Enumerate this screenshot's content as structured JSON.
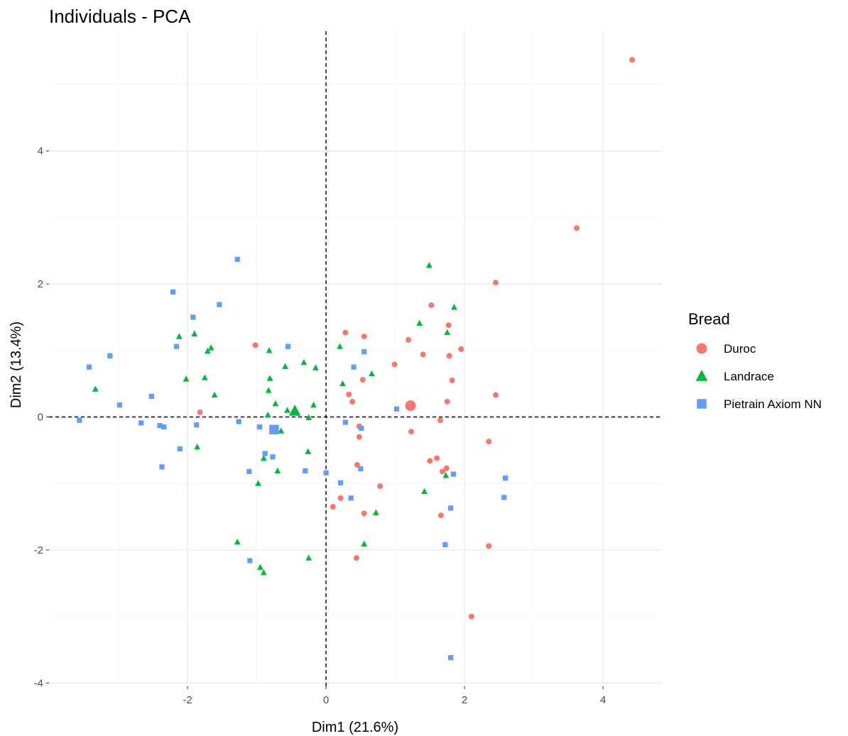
{
  "chart_data": {
    "type": "scatter",
    "title": "Individuals - PCA",
    "xlabel": "Dim1 (21.6%)",
    "ylabel": "Dim2 (13.4%)",
    "xlim": [
      -4.0,
      4.85
    ],
    "ylim": [
      -4.05,
      5.8
    ],
    "xticks": [
      -2,
      0,
      2,
      4
    ],
    "yticks": [
      -4,
      -2,
      0,
      2,
      4
    ],
    "xtick_labels": [
      "-2",
      "0",
      "2",
      "4"
    ],
    "ytick_labels": [
      "-4",
      "-2",
      "0",
      "2",
      "4"
    ],
    "grid": true,
    "reference_lines": {
      "x": 0,
      "y": 0
    },
    "legend": {
      "title": "Bread",
      "position": "right"
    },
    "series": [
      {
        "name": "Duroc",
        "color": "#F8766D",
        "marker": "circle",
        "centroid": [
          1.22,
          0.17
        ],
        "points": [
          [
            4.42,
            5.37
          ],
          [
            3.62,
            2.84
          ],
          [
            2.45,
            2.02
          ],
          [
            1.52,
            1.68
          ],
          [
            0.28,
            1.27
          ],
          [
            0.55,
            1.21
          ],
          [
            1.77,
            1.38
          ],
          [
            1.19,
            1.16
          ],
          [
            1.95,
            1.02
          ],
          [
            1.4,
            0.94
          ],
          [
            1.78,
            0.92
          ],
          [
            -1.02,
            1.08
          ],
          [
            0.99,
            0.79
          ],
          [
            1.82,
            0.55
          ],
          [
            0.53,
            0.56
          ],
          [
            0.33,
            0.34
          ],
          [
            0.38,
            0.23
          ],
          [
            2.45,
            0.33
          ],
          [
            1.75,
            0.23
          ],
          [
            -1.82,
            0.07
          ],
          [
            1.65,
            -0.05
          ],
          [
            1.23,
            -0.22
          ],
          [
            0.48,
            -0.14
          ],
          [
            0.48,
            -0.3
          ],
          [
            2.35,
            -0.37
          ],
          [
            1.6,
            -0.62
          ],
          [
            1.5,
            -0.66
          ],
          [
            1.74,
            -0.77
          ],
          [
            1.68,
            -0.82
          ],
          [
            0.45,
            -0.72
          ],
          [
            0.78,
            -1.04
          ],
          [
            0.21,
            -1.22
          ],
          [
            0.1,
            -1.35
          ],
          [
            0.55,
            -1.45
          ],
          [
            1.66,
            -1.48
          ],
          [
            2.35,
            -1.94
          ],
          [
            0.44,
            -2.12
          ],
          [
            2.1,
            -3.0
          ]
        ]
      },
      {
        "name": "Landrace",
        "color": "#00BA38",
        "marker": "triangle",
        "centroid": [
          -0.45,
          0.09
        ],
        "points": [
          [
            1.49,
            2.28
          ],
          [
            1.85,
            1.65
          ],
          [
            1.35,
            1.41
          ],
          [
            1.75,
            1.27
          ],
          [
            -2.12,
            1.21
          ],
          [
            -1.9,
            1.25
          ],
          [
            -1.66,
            1.04
          ],
          [
            -1.71,
            0.99
          ],
          [
            -0.82,
            1.0
          ],
          [
            0.2,
            1.06
          ],
          [
            -0.32,
            0.82
          ],
          [
            -0.59,
            0.76
          ],
          [
            -0.15,
            0.74
          ],
          [
            0.66,
            0.65
          ],
          [
            -2.02,
            0.57
          ],
          [
            -1.75,
            0.59
          ],
          [
            -0.81,
            0.58
          ],
          [
            0.24,
            0.5
          ],
          [
            -0.83,
            0.4
          ],
          [
            -3.33,
            0.42
          ],
          [
            -1.61,
            0.33
          ],
          [
            -0.73,
            0.2
          ],
          [
            -0.18,
            0.18
          ],
          [
            -0.84,
            0.03
          ],
          [
            -0.56,
            0.1
          ],
          [
            -0.25,
            -0.01
          ],
          [
            -0.65,
            -0.21
          ],
          [
            -1.86,
            -0.45
          ],
          [
            -0.26,
            -0.52
          ],
          [
            -0.9,
            -0.62
          ],
          [
            -0.7,
            -0.81
          ],
          [
            1.73,
            -0.88
          ],
          [
            -0.98,
            -1.0
          ],
          [
            1.42,
            -1.12
          ],
          [
            0.72,
            -1.44
          ],
          [
            -1.28,
            -1.88
          ],
          [
            0.55,
            -1.91
          ],
          [
            -0.25,
            -2.12
          ],
          [
            -0.95,
            -2.26
          ],
          [
            -0.9,
            -2.34
          ]
        ]
      },
      {
        "name": "Pietrain Axiom NN",
        "color": "#619CFF",
        "marker": "square",
        "centroid": [
          -0.75,
          -0.19
        ],
        "points": [
          [
            -1.28,
            2.37
          ],
          [
            -2.21,
            1.88
          ],
          [
            -1.54,
            1.69
          ],
          [
            -1.92,
            1.5
          ],
          [
            -2.16,
            1.06
          ],
          [
            -0.55,
            1.06
          ],
          [
            0.55,
            0.98
          ],
          [
            -3.12,
            0.92
          ],
          [
            -3.42,
            0.75
          ],
          [
            0.4,
            0.75
          ],
          [
            -2.52,
            0.31
          ],
          [
            -2.98,
            0.18
          ],
          [
            1.02,
            0.12
          ],
          [
            -3.56,
            -0.05
          ],
          [
            -2.67,
            -0.09
          ],
          [
            -1.26,
            -0.07
          ],
          [
            0.28,
            -0.08
          ],
          [
            -2.4,
            -0.13
          ],
          [
            -2.34,
            -0.15
          ],
          [
            -1.87,
            -0.12
          ],
          [
            -0.96,
            -0.15
          ],
          [
            0.51,
            -0.17
          ],
          [
            -2.11,
            -0.48
          ],
          [
            -0.88,
            -0.55
          ],
          [
            -0.77,
            -0.6
          ],
          [
            -2.37,
            -0.75
          ],
          [
            -1.11,
            -0.82
          ],
          [
            -0.3,
            -0.81
          ],
          [
            0.5,
            -0.78
          ],
          [
            0.0,
            -0.84
          ],
          [
            1.84,
            -0.86
          ],
          [
            2.59,
            -0.92
          ],
          [
            0.21,
            -0.99
          ],
          [
            0.36,
            -1.22
          ],
          [
            2.57,
            -1.21
          ],
          [
            1.8,
            -1.37
          ],
          [
            1.72,
            -1.92
          ],
          [
            -1.1,
            -2.16
          ],
          [
            1.8,
            -3.62
          ]
        ]
      }
    ]
  }
}
